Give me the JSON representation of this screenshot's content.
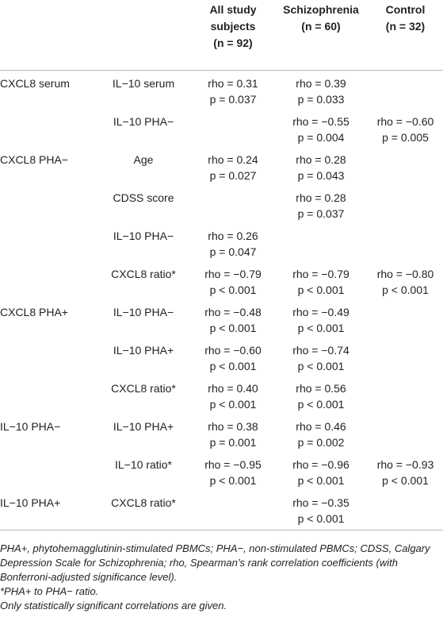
{
  "table": {
    "columns": [
      {
        "label": "All study subjects",
        "n": "(n = 92)"
      },
      {
        "label": "Schizophrenia",
        "n": "(n = 60)"
      },
      {
        "label": "Control",
        "n": "(n = 32)"
      }
    ],
    "groups": [
      {
        "name": "CXCL8 serum",
        "rows": [
          {
            "variable": "IL−10 serum",
            "cells": [
              {
                "rho": "rho = 0.31",
                "p": "p = 0.037"
              },
              {
                "rho": "rho = 0.39",
                "p": "p = 0.033"
              },
              null
            ]
          },
          {
            "variable": "IL−10 PHA−",
            "cells": [
              null,
              {
                "rho": "rho = −0.55",
                "p": "p = 0.004"
              },
              {
                "rho": "rho = −0.60",
                "p": "p = 0.005"
              }
            ]
          }
        ]
      },
      {
        "name": "CXCL8 PHA−",
        "rows": [
          {
            "variable": "Age",
            "cells": [
              {
                "rho": "rho = 0.24",
                "p": "p = 0.027"
              },
              {
                "rho": "rho = 0.28",
                "p": "p = 0.043"
              },
              null
            ]
          },
          {
            "variable": "CDSS score",
            "cells": [
              null,
              {
                "rho": "rho = 0.28",
                "p": "p = 0.037"
              },
              null
            ]
          },
          {
            "variable": "IL−10 PHA−",
            "cells": [
              {
                "rho": "rho = 0.26",
                "p": "p = 0.047"
              },
              null,
              null
            ]
          },
          {
            "variable": "CXCL8 ratio*",
            "cells": [
              {
                "rho": "rho = −0.79",
                "p": "p < 0.001"
              },
              {
                "rho": "rho = −0.79",
                "p": "p < 0.001"
              },
              {
                "rho": "rho = −0.80",
                "p": "p < 0.001"
              }
            ]
          }
        ]
      },
      {
        "name": "CXCL8 PHA+",
        "rows": [
          {
            "variable": "IL−10 PHA−",
            "cells": [
              {
                "rho": "rho = −0.48",
                "p": "p < 0.001"
              },
              {
                "rho": "rho = −0.49",
                "p": "p < 0.001"
              },
              null
            ]
          },
          {
            "variable": "IL−10 PHA+",
            "cells": [
              {
                "rho": "rho = −0.60",
                "p": "p < 0.001"
              },
              {
                "rho": "rho = −0.74",
                "p": "p < 0.001"
              },
              null
            ]
          },
          {
            "variable": "CXCL8 ratio*",
            "cells": [
              {
                "rho": "rho = 0.40",
                "p": "p < 0.001"
              },
              {
                "rho": "rho = 0.56",
                "p": "p < 0.001"
              },
              null
            ]
          }
        ]
      },
      {
        "name": "IL−10 PHA−",
        "rows": [
          {
            "variable": "IL−10 PHA+",
            "cells": [
              {
                "rho": "rho = 0.38",
                "p": "p = 0.001"
              },
              {
                "rho": "rho = 0.46",
                "p": "p = 0.002"
              },
              null
            ]
          },
          {
            "variable": "IL−10 ratio*",
            "cells": [
              {
                "rho": "rho = −0.95",
                "p": "p < 0.001"
              },
              {
                "rho": "rho = −0.96",
                "p": "p < 0.001"
              },
              {
                "rho": "rho = −0.93",
                "p": "p < 0.001"
              }
            ]
          }
        ]
      },
      {
        "name": "IL−10 PHA+",
        "rows": [
          {
            "variable": "CXCL8 ratio*",
            "cells": [
              null,
              {
                "rho": "rho = −0.35",
                "p": "p < 0.001"
              },
              null
            ]
          }
        ]
      }
    ],
    "notes": [
      "PHA+, phytohemagglutinin-stimulated PBMCs; PHA−, non-stimulated PBMCs; CDSS, Calgary Depression Scale for Schizophrenia; rho, Spearman’s rank correlation coefficients (with Bonferroni-adjusted significance level).",
      "*PHA+ to PHA− ratio.",
      "Only statistically significant correlations are given."
    ]
  }
}
